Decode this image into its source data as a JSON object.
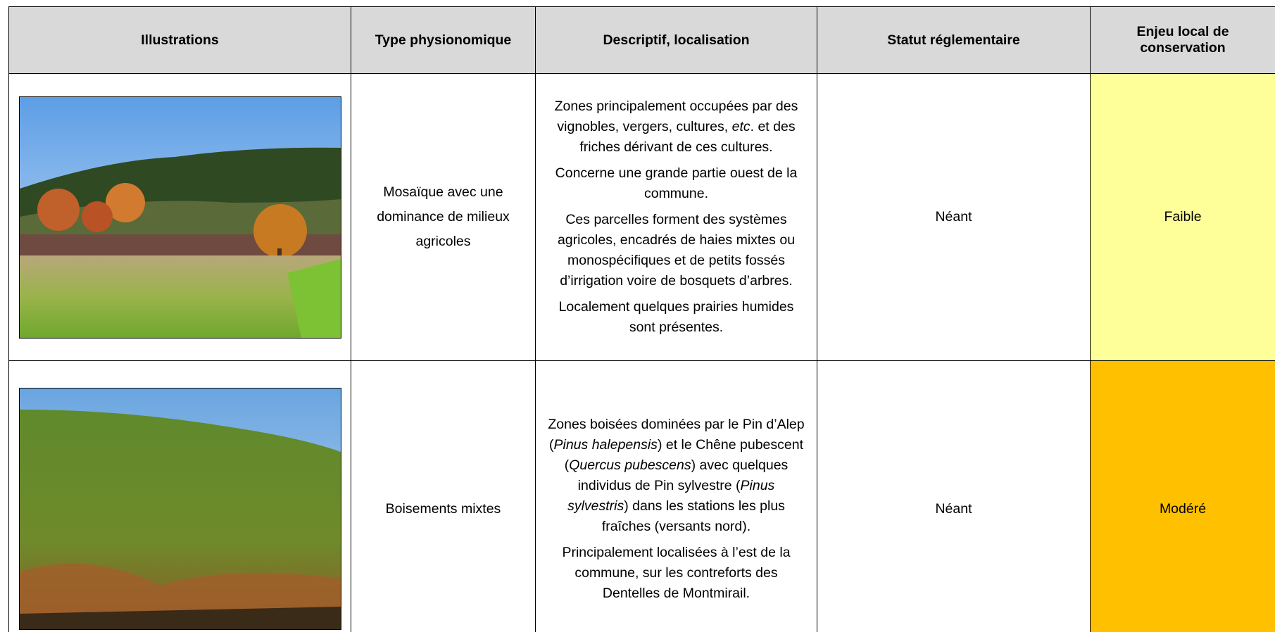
{
  "table": {
    "headers": [
      "Illustrations",
      "Type physionomique",
      "Descriptif, localisation",
      "Statut réglementaire",
      "Enjeu local de conservation"
    ],
    "rows": [
      {
        "type": "Mosaïque avec une dominance de milieux agricoles",
        "description": [
          [
            {
              "text": "Zones principalement occupées par des vignobles, vergers, cultures, "
            },
            {
              "text": "etc",
              "italic": true
            },
            {
              "text": ". et des friches dérivant de ces cultures."
            }
          ],
          [
            {
              "text": "Concerne une grande partie ouest de la commune."
            }
          ],
          [
            {
              "text": "Ces parcelles forment des systèmes agricoles, encadrés de haies mixtes ou monospécifiques et de petits fossés d’irrigation voire de bosquets d’arbres."
            }
          ],
          [
            {
              "text": "Localement quelques prairies humides sont présentes."
            }
          ]
        ],
        "status": "Néant",
        "stake": "Faible",
        "stake_color": "#ffff99"
      },
      {
        "type": "Boisements mixtes",
        "description": [
          [
            {
              "text": "Zones boisées dominées par le Pin d’Alep ("
            },
            {
              "text": "Pinus halepensis",
              "italic": true
            },
            {
              "text": ") et le Chêne pubescent ("
            },
            {
              "text": "Quercus pubescens",
              "italic": true
            },
            {
              "text": ") avec quelques individus de Pin sylvestre ("
            },
            {
              "text": "Pinus sylvestris",
              "italic": true
            },
            {
              "text": ") dans les stations les plus fraîches (versants nord)."
            }
          ],
          [
            {
              "text": "Principalement localisées à l’est de la commune, sur les contreforts des Dentelles de Montmirail."
            }
          ]
        ],
        "status": "Néant",
        "stake": "Modéré",
        "stake_color": "#ffc000"
      }
    ]
  }
}
